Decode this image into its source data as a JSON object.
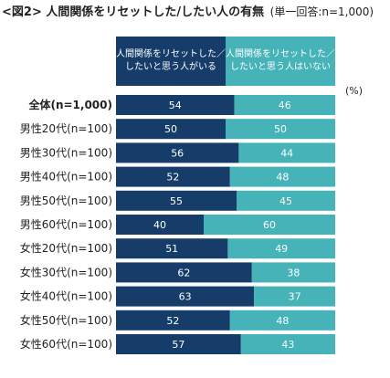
{
  "chart_data": {
    "type": "bar",
    "stacked": true,
    "orientation": "horizontal",
    "title": "<図2> 人間関係をリセットした/したい人の有無",
    "subtitle": "(単一回答:n=1,000)",
    "unit": "(%)",
    "legend_placement": "top",
    "categories": [
      "全体(n=1,000)",
      "男性20代(n=100)",
      "男性30代(n=100)",
      "男性40代(n=100)",
      "男性50代(n=100)",
      "男性60代(n=100)",
      "女性20代(n=100)",
      "女性30代(n=100)",
      "女性40代(n=100)",
      "女性50代(n=100)",
      "女性60代(n=100)"
    ],
    "series": [
      {
        "name": "人間関係をリセットした/したいと思う人がいる",
        "legend_lines": [
          "人間関係をリセットした／",
          "したいと思う人がいる"
        ],
        "color": "#163d6a",
        "values": [
          54,
          50,
          56,
          52,
          55,
          40,
          51,
          62,
          63,
          52,
          57
        ]
      },
      {
        "name": "人間関係をリセットした/したいと思う人はいない",
        "legend_lines": [
          "人間関係をリセットした／",
          "したいと思う人はいない"
        ],
        "color": "#46b3b8",
        "values": [
          46,
          50,
          44,
          48,
          45,
          60,
          49,
          38,
          37,
          48,
          43
        ]
      }
    ],
    "xlim": [
      0,
      100
    ],
    "grid": false
  }
}
